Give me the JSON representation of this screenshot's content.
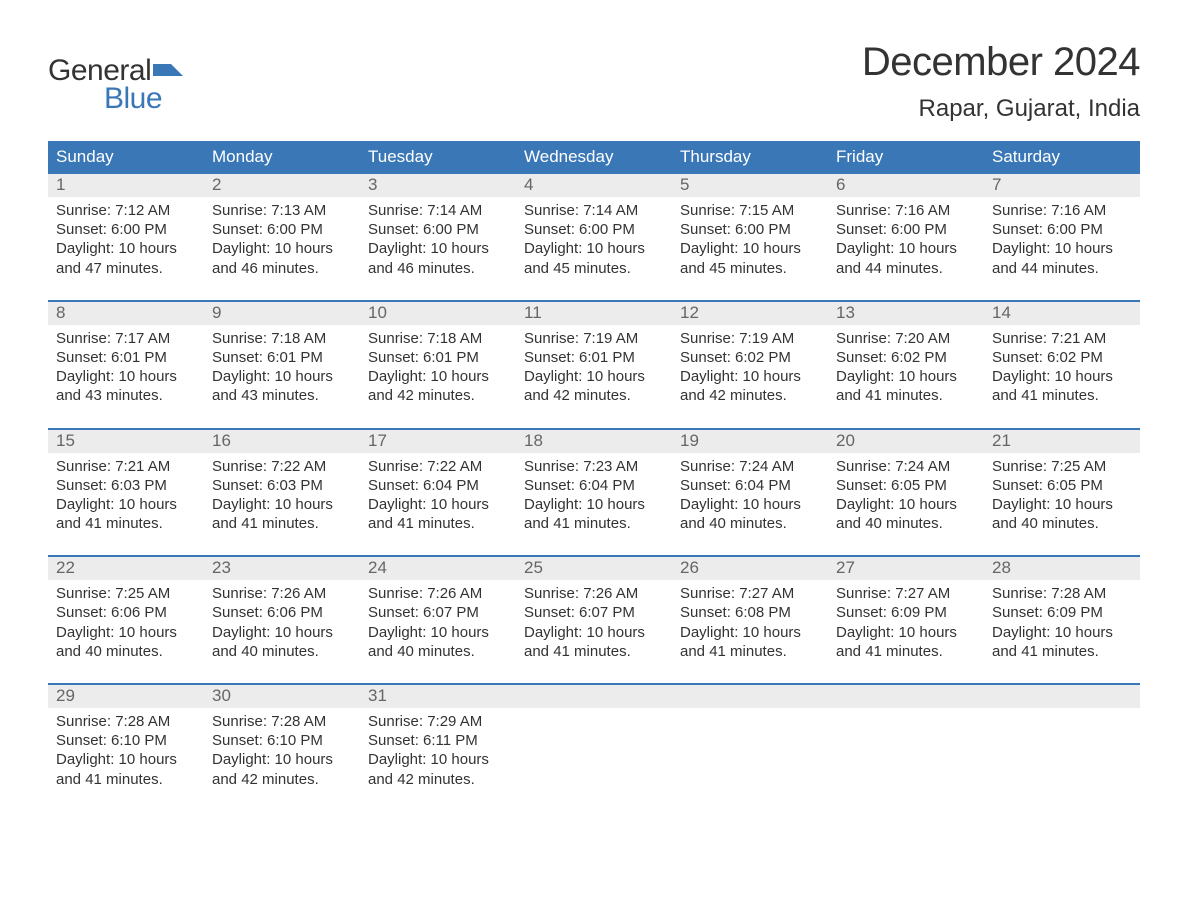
{
  "logo": {
    "top": "General",
    "bottom": "Blue",
    "accent_color": "#3a77b7"
  },
  "title": "December 2024",
  "location": "Rapar, Gujarat, India",
  "colors": {
    "header_bg": "#3a77b7",
    "header_text": "#ffffff",
    "daynum_bg": "#ececec",
    "daynum_text": "#666666",
    "body_text": "#333333",
    "week_border": "#3a77b7"
  },
  "day_headers": [
    "Sunday",
    "Monday",
    "Tuesday",
    "Wednesday",
    "Thursday",
    "Friday",
    "Saturday"
  ],
  "weeks": [
    [
      {
        "n": "1",
        "sunrise": "Sunrise: 7:12 AM",
        "sunset": "Sunset: 6:00 PM",
        "d1": "Daylight: 10 hours",
        "d2": "and 47 minutes."
      },
      {
        "n": "2",
        "sunrise": "Sunrise: 7:13 AM",
        "sunset": "Sunset: 6:00 PM",
        "d1": "Daylight: 10 hours",
        "d2": "and 46 minutes."
      },
      {
        "n": "3",
        "sunrise": "Sunrise: 7:14 AM",
        "sunset": "Sunset: 6:00 PM",
        "d1": "Daylight: 10 hours",
        "d2": "and 46 minutes."
      },
      {
        "n": "4",
        "sunrise": "Sunrise: 7:14 AM",
        "sunset": "Sunset: 6:00 PM",
        "d1": "Daylight: 10 hours",
        "d2": "and 45 minutes."
      },
      {
        "n": "5",
        "sunrise": "Sunrise: 7:15 AM",
        "sunset": "Sunset: 6:00 PM",
        "d1": "Daylight: 10 hours",
        "d2": "and 45 minutes."
      },
      {
        "n": "6",
        "sunrise": "Sunrise: 7:16 AM",
        "sunset": "Sunset: 6:00 PM",
        "d1": "Daylight: 10 hours",
        "d2": "and 44 minutes."
      },
      {
        "n": "7",
        "sunrise": "Sunrise: 7:16 AM",
        "sunset": "Sunset: 6:00 PM",
        "d1": "Daylight: 10 hours",
        "d2": "and 44 minutes."
      }
    ],
    [
      {
        "n": "8",
        "sunrise": "Sunrise: 7:17 AM",
        "sunset": "Sunset: 6:01 PM",
        "d1": "Daylight: 10 hours",
        "d2": "and 43 minutes."
      },
      {
        "n": "9",
        "sunrise": "Sunrise: 7:18 AM",
        "sunset": "Sunset: 6:01 PM",
        "d1": "Daylight: 10 hours",
        "d2": "and 43 minutes."
      },
      {
        "n": "10",
        "sunrise": "Sunrise: 7:18 AM",
        "sunset": "Sunset: 6:01 PM",
        "d1": "Daylight: 10 hours",
        "d2": "and 42 minutes."
      },
      {
        "n": "11",
        "sunrise": "Sunrise: 7:19 AM",
        "sunset": "Sunset: 6:01 PM",
        "d1": "Daylight: 10 hours",
        "d2": "and 42 minutes."
      },
      {
        "n": "12",
        "sunrise": "Sunrise: 7:19 AM",
        "sunset": "Sunset: 6:02 PM",
        "d1": "Daylight: 10 hours",
        "d2": "and 42 minutes."
      },
      {
        "n": "13",
        "sunrise": "Sunrise: 7:20 AM",
        "sunset": "Sunset: 6:02 PM",
        "d1": "Daylight: 10 hours",
        "d2": "and 41 minutes."
      },
      {
        "n": "14",
        "sunrise": "Sunrise: 7:21 AM",
        "sunset": "Sunset: 6:02 PM",
        "d1": "Daylight: 10 hours",
        "d2": "and 41 minutes."
      }
    ],
    [
      {
        "n": "15",
        "sunrise": "Sunrise: 7:21 AM",
        "sunset": "Sunset: 6:03 PM",
        "d1": "Daylight: 10 hours",
        "d2": "and 41 minutes."
      },
      {
        "n": "16",
        "sunrise": "Sunrise: 7:22 AM",
        "sunset": "Sunset: 6:03 PM",
        "d1": "Daylight: 10 hours",
        "d2": "and 41 minutes."
      },
      {
        "n": "17",
        "sunrise": "Sunrise: 7:22 AM",
        "sunset": "Sunset: 6:04 PM",
        "d1": "Daylight: 10 hours",
        "d2": "and 41 minutes."
      },
      {
        "n": "18",
        "sunrise": "Sunrise: 7:23 AM",
        "sunset": "Sunset: 6:04 PM",
        "d1": "Daylight: 10 hours",
        "d2": "and 41 minutes."
      },
      {
        "n": "19",
        "sunrise": "Sunrise: 7:24 AM",
        "sunset": "Sunset: 6:04 PM",
        "d1": "Daylight: 10 hours",
        "d2": "and 40 minutes."
      },
      {
        "n": "20",
        "sunrise": "Sunrise: 7:24 AM",
        "sunset": "Sunset: 6:05 PM",
        "d1": "Daylight: 10 hours",
        "d2": "and 40 minutes."
      },
      {
        "n": "21",
        "sunrise": "Sunrise: 7:25 AM",
        "sunset": "Sunset: 6:05 PM",
        "d1": "Daylight: 10 hours",
        "d2": "and 40 minutes."
      }
    ],
    [
      {
        "n": "22",
        "sunrise": "Sunrise: 7:25 AM",
        "sunset": "Sunset: 6:06 PM",
        "d1": "Daylight: 10 hours",
        "d2": "and 40 minutes."
      },
      {
        "n": "23",
        "sunrise": "Sunrise: 7:26 AM",
        "sunset": "Sunset: 6:06 PM",
        "d1": "Daylight: 10 hours",
        "d2": "and 40 minutes."
      },
      {
        "n": "24",
        "sunrise": "Sunrise: 7:26 AM",
        "sunset": "Sunset: 6:07 PM",
        "d1": "Daylight: 10 hours",
        "d2": "and 40 minutes."
      },
      {
        "n": "25",
        "sunrise": "Sunrise: 7:26 AM",
        "sunset": "Sunset: 6:07 PM",
        "d1": "Daylight: 10 hours",
        "d2": "and 41 minutes."
      },
      {
        "n": "26",
        "sunrise": "Sunrise: 7:27 AM",
        "sunset": "Sunset: 6:08 PM",
        "d1": "Daylight: 10 hours",
        "d2": "and 41 minutes."
      },
      {
        "n": "27",
        "sunrise": "Sunrise: 7:27 AM",
        "sunset": "Sunset: 6:09 PM",
        "d1": "Daylight: 10 hours",
        "d2": "and 41 minutes."
      },
      {
        "n": "28",
        "sunrise": "Sunrise: 7:28 AM",
        "sunset": "Sunset: 6:09 PM",
        "d1": "Daylight: 10 hours",
        "d2": "and 41 minutes."
      }
    ],
    [
      {
        "n": "29",
        "sunrise": "Sunrise: 7:28 AM",
        "sunset": "Sunset: 6:10 PM",
        "d1": "Daylight: 10 hours",
        "d2": "and 41 minutes."
      },
      {
        "n": "30",
        "sunrise": "Sunrise: 7:28 AM",
        "sunset": "Sunset: 6:10 PM",
        "d1": "Daylight: 10 hours",
        "d2": "and 42 minutes."
      },
      {
        "n": "31",
        "sunrise": "Sunrise: 7:29 AM",
        "sunset": "Sunset: 6:11 PM",
        "d1": "Daylight: 10 hours",
        "d2": "and 42 minutes."
      },
      {
        "empty": true
      },
      {
        "empty": true
      },
      {
        "empty": true
      },
      {
        "empty": true
      }
    ]
  ]
}
